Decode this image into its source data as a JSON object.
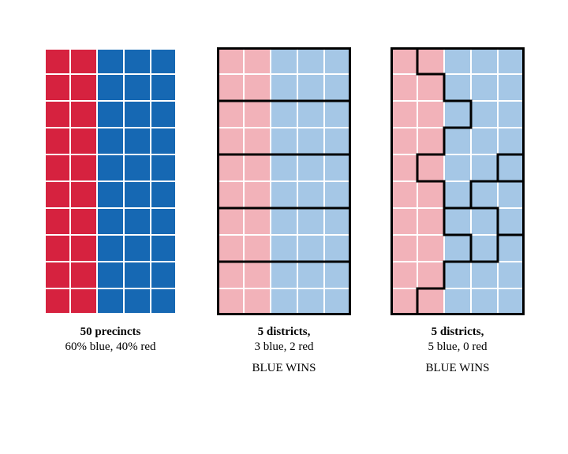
{
  "diagram": {
    "type": "infographic",
    "cell_size": 34,
    "gap_color": "#ffffff",
    "gap_width": 3,
    "colors": {
      "red_strong": "#d6223f",
      "blue_strong": "#1668b3",
      "red_light": "#f2b2b9",
      "blue_light": "#a5c7e6",
      "boundary": "#000000",
      "boundary_width": 3
    },
    "grid": {
      "rows": 10,
      "cols": 5
    },
    "panels": [
      {
        "id": "A",
        "title": "50 precincts",
        "sub": "60% blue, 40% red",
        "palette": "strong",
        "boundaries": []
      },
      {
        "id": "B",
        "title": "5 districts,",
        "sub": "3 blue, 2 red",
        "palette": "light",
        "outer_border": true,
        "boundaries": [
          [
            [
              0,
              2
            ],
            [
              5,
              2
            ]
          ],
          [
            [
              0,
              4
            ],
            [
              5,
              4
            ]
          ],
          [
            [
              0,
              6
            ],
            [
              5,
              6
            ]
          ],
          [
            [
              0,
              8
            ],
            [
              5,
              8
            ]
          ]
        ]
      },
      {
        "id": "C",
        "title": "5 districts,",
        "sub": "5 blue, 0 red",
        "palette": "light",
        "outer_border": true,
        "boundaries": [
          [
            [
              1,
              0
            ],
            [
              1,
              1
            ]
          ],
          [
            [
              1,
              1
            ],
            [
              2,
              1
            ]
          ],
          [
            [
              2,
              1
            ],
            [
              2,
              2
            ]
          ],
          [
            [
              2,
              2
            ],
            [
              3,
              2
            ]
          ],
          [
            [
              3,
              2
            ],
            [
              3,
              3
            ]
          ],
          [
            [
              3,
              3
            ],
            [
              2,
              3
            ]
          ],
          [
            [
              2,
              3
            ],
            [
              2,
              4
            ]
          ],
          [
            [
              2,
              4
            ],
            [
              1,
              4
            ]
          ],
          [
            [
              1,
              4
            ],
            [
              1,
              5
            ]
          ],
          [
            [
              1,
              5
            ],
            [
              2,
              5
            ]
          ],
          [
            [
              2,
              5
            ],
            [
              2,
              6
            ]
          ],
          [
            [
              2,
              6
            ],
            [
              3,
              6
            ]
          ],
          [
            [
              3,
              6
            ],
            [
              3,
              5
            ]
          ],
          [
            [
              3,
              5
            ],
            [
              4,
              5
            ]
          ],
          [
            [
              4,
              5
            ],
            [
              4,
              4
            ]
          ],
          [
            [
              4,
              4
            ],
            [
              5,
              4
            ]
          ],
          [
            [
              1,
              10
            ],
            [
              1,
              9
            ]
          ],
          [
            [
              1,
              9
            ],
            [
              2,
              9
            ]
          ],
          [
            [
              2,
              9
            ],
            [
              2,
              8
            ]
          ],
          [
            [
              2,
              8
            ],
            [
              3,
              8
            ]
          ],
          [
            [
              3,
              8
            ],
            [
              3,
              7
            ]
          ],
          [
            [
              3,
              7
            ],
            [
              2,
              7
            ]
          ],
          [
            [
              2,
              7
            ],
            [
              2,
              6
            ]
          ],
          [
            [
              5,
              4
            ],
            [
              5,
              5
            ]
          ],
          [
            [
              5,
              5
            ],
            [
              4,
              5
            ]
          ],
          [
            [
              3,
              6
            ],
            [
              4,
              6
            ]
          ],
          [
            [
              4,
              6
            ],
            [
              4,
              7
            ]
          ],
          [
            [
              4,
              7
            ],
            [
              5,
              7
            ]
          ],
          [
            [
              3,
              8
            ],
            [
              4,
              8
            ]
          ],
          [
            [
              4,
              8
            ],
            [
              4,
              7
            ]
          ]
        ]
      }
    ],
    "footer": "BLUE WINS"
  },
  "captions": {
    "A_title": "50 precincts",
    "A_sub": "60% blue, 40% red",
    "B_title": "5 districts,",
    "B_sub": "3 blue, 2 red",
    "C_title": "5 districts,",
    "C_sub": "5 blue, 0 red",
    "footer": "BLUE WINS"
  }
}
